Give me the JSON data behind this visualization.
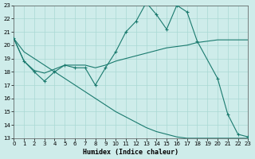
{
  "xlabel": "Humidex (Indice chaleur)",
  "xlim": [
    0,
    23
  ],
  "ylim": [
    13,
    23
  ],
  "xticks": [
    0,
    1,
    2,
    3,
    4,
    5,
    6,
    7,
    8,
    9,
    10,
    11,
    12,
    13,
    14,
    15,
    16,
    17,
    18,
    19,
    20,
    21,
    22,
    23
  ],
  "yticks": [
    13,
    14,
    15,
    16,
    17,
    18,
    19,
    20,
    21,
    22,
    23
  ],
  "bg_color": "#ceecea",
  "grid_color": "#aad8d4",
  "line_color": "#1a7a6e",
  "line1_x": [
    0,
    1,
    2,
    3,
    4,
    5,
    6,
    7,
    8,
    9,
    10,
    11,
    12,
    13,
    14,
    15,
    16,
    17,
    18,
    20,
    21,
    22,
    23
  ],
  "line1_y": [
    20.5,
    18.8,
    18.0,
    17.3,
    18.0,
    18.5,
    18.3,
    18.3,
    17.0,
    18.3,
    19.5,
    21.0,
    21.8,
    23.2,
    22.3,
    21.2,
    23.0,
    22.5,
    20.3,
    17.5,
    14.8,
    13.3,
    13.1
  ],
  "line2_x": [
    0,
    1,
    2,
    3,
    4,
    5,
    6,
    7,
    8,
    9,
    10,
    11,
    12,
    13,
    14,
    15,
    16,
    17,
    18,
    19,
    20,
    21,
    22,
    23
  ],
  "line2_y": [
    20.5,
    18.8,
    18.1,
    17.9,
    18.2,
    18.5,
    18.5,
    18.5,
    18.3,
    18.5,
    18.8,
    19.0,
    19.2,
    19.4,
    19.6,
    19.8,
    19.9,
    20.0,
    20.2,
    20.3,
    20.4,
    20.4,
    20.4,
    20.4
  ],
  "line3_x": [
    0,
    1,
    2,
    3,
    4,
    5,
    6,
    7,
    8,
    9,
    10,
    11,
    12,
    13,
    14,
    15,
    16,
    17,
    18,
    19,
    20,
    21,
    22,
    23
  ],
  "line3_y": [
    20.5,
    19.5,
    19.0,
    18.5,
    18.0,
    17.5,
    17.0,
    16.5,
    16.0,
    15.5,
    15.0,
    14.6,
    14.2,
    13.8,
    13.5,
    13.3,
    13.1,
    13.0,
    13.0,
    13.0,
    13.0,
    13.0,
    13.0,
    13.0
  ]
}
